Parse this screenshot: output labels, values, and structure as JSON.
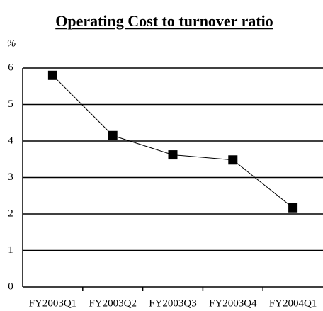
{
  "chart_data": {
    "type": "line",
    "title": "Operating Cost to turnover ratio",
    "y_label": "%",
    "categories": [
      "FY2003Q1",
      "FY2003Q2",
      "FY2003Q3",
      "FY2003Q4",
      "FY2004Q1"
    ],
    "series": [
      {
        "name": "Operating Cost to turnover ratio",
        "color": "#000000",
        "values": [
          5.8,
          4.15,
          3.62,
          3.48,
          2.17
        ]
      }
    ],
    "ylim": [
      0,
      6
    ],
    "yticks": [
      0,
      1,
      2,
      3,
      4,
      5,
      6
    ],
    "grid": true
  }
}
